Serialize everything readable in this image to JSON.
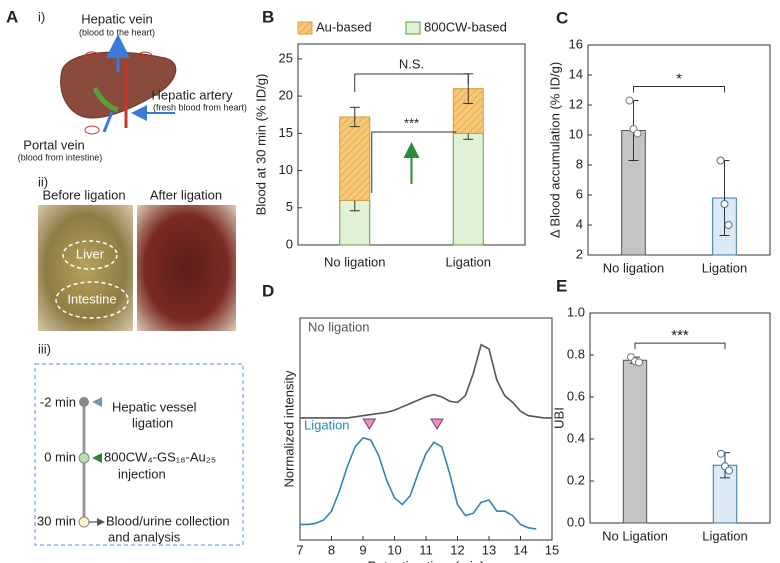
{
  "panel_a": {
    "letter": "A",
    "part_i": "i)",
    "hepatic_vein": "Hepatic vein",
    "hepatic_vein_note": "(blood to the heart)",
    "hepatic_artery": "Hepatic artery",
    "hepatic_artery_note": "(fresh blood from heart)",
    "portal_vein": "Portal vein",
    "portal_vein_note": "(blood from intestine)",
    "part_ii": "ii)",
    "before": "Before ligation",
    "after": "After ligation",
    "liver": "Liver",
    "intestine": "Intestine",
    "part_iii": "iii)",
    "steps": [
      {
        "time": "-2 min",
        "lines": [
          "Hepatic vessel",
          "ligation"
        ]
      },
      {
        "time": "0 min",
        "lines": [
          "800CW₄-GS₁₈-Au₂₅",
          "injection"
        ]
      },
      {
        "time": "30 min",
        "lines": [
          "Blood/urine collection",
          "and analysis"
        ]
      }
    ]
  },
  "chart_data": [
    {
      "type": "stacked_bar",
      "panel": "B",
      "y_label": "Blood at 30 min (% ID/g)",
      "categories": [
        "No ligation",
        "Ligation"
      ],
      "series": [
        {
          "name": "Au-based",
          "color": "#f6c978",
          "values": [
            11.2,
            6.0
          ],
          "errors": [
            1.3,
            2.0
          ]
        },
        {
          "name": "800CW-based",
          "color": "#e0f1d6",
          "values": [
            6.0,
            15.0
          ],
          "errors": [
            1.4,
            0.8
          ]
        }
      ],
      "ylim": [
        0,
        27
      ],
      "yticks": [
        0,
        5,
        10,
        15,
        20,
        25
      ],
      "annotations": [
        "N.S.",
        "***"
      ]
    },
    {
      "type": "bar",
      "panel": "C",
      "y_label": "Δ Blood accumulation (% ID/g)",
      "categories": [
        "No ligation",
        "Ligation"
      ],
      "values": [
        10.3,
        5.8
      ],
      "errors": [
        2.0,
        2.5
      ],
      "points": [
        [
          12.3,
          10.4,
          10.1
        ],
        [
          8.3,
          5.4,
          4.0
        ]
      ],
      "colors": [
        "#c4c4c4",
        "#dbeaf4"
      ],
      "ylim": [
        2,
        16
      ],
      "yticks": [
        2,
        4,
        6,
        8,
        10,
        12,
        14,
        16
      ],
      "annotations": [
        "*"
      ]
    },
    {
      "type": "line",
      "panel": "D",
      "x_label": "Retention time (min)",
      "y_label": "Normalized intensity",
      "x": [
        7,
        7.25,
        7.5,
        7.75,
        8,
        8.25,
        8.5,
        8.75,
        9,
        9.25,
        9.5,
        9.75,
        10,
        10.25,
        10.5,
        10.75,
        11,
        11.25,
        11.5,
        11.75,
        12,
        12.25,
        12.5,
        12.75,
        13,
        13.25,
        13.5,
        13.75,
        14,
        14.25,
        14.5,
        14.75,
        15
      ],
      "series": [
        {
          "name": "No ligation",
          "color": "#555555",
          "values": [
            0.55,
            0.55,
            0.55,
            0.55,
            0.55,
            0.55,
            0.55,
            0.555,
            0.56,
            0.565,
            0.57,
            0.575,
            0.585,
            0.6,
            0.615,
            0.63,
            0.645,
            0.655,
            0.645,
            0.625,
            0.62,
            0.65,
            0.75,
            0.88,
            0.86,
            0.72,
            0.65,
            0.62,
            0.58,
            0.56,
            0.555,
            0.55,
            0.55
          ]
        },
        {
          "name": "Ligation",
          "color": "#2e86b5",
          "values": [
            0.07,
            0.07,
            0.075,
            0.09,
            0.13,
            0.22,
            0.33,
            0.42,
            0.46,
            0.45,
            0.38,
            0.27,
            0.19,
            0.16,
            0.2,
            0.3,
            0.39,
            0.44,
            0.42,
            0.3,
            0.16,
            0.11,
            0.12,
            0.17,
            0.18,
            0.13,
            0.13,
            0.11,
            0.07,
            0.055,
            0.05,
            null,
            null
          ]
        }
      ],
      "markers_x": [
        9.2,
        11.35
      ],
      "marker_color": "#ec8fb2",
      "xlim": [
        7,
        15
      ],
      "xticks": [
        7,
        8,
        9,
        10,
        11,
        12,
        13,
        14,
        15
      ],
      "ylim": [
        0,
        1
      ]
    },
    {
      "type": "bar",
      "panel": "E",
      "y_label": "UBI",
      "categories": [
        "No Ligation",
        "Ligation"
      ],
      "values": [
        0.775,
        0.275
      ],
      "errors": [
        0.015,
        0.06
      ],
      "points": [
        [
          0.79,
          0.77,
          0.765
        ],
        [
          0.33,
          0.27,
          0.25
        ]
      ],
      "colors": [
        "#c4c4c4",
        "#dbeaf4"
      ],
      "ylim": [
        0,
        1
      ],
      "yticks": [
        {
          "value": 0,
          "label": "0.0"
        },
        {
          "value": 0.2,
          "label": "0.2"
        },
        {
          "value": 0.4,
          "label": "0.4"
        },
        {
          "value": 0.6,
          "label": "0.6"
        },
        {
          "value": 0.8,
          "label": "0.8"
        },
        {
          "value": 1,
          "label": "1.0"
        }
      ],
      "annotations": [
        "***"
      ]
    }
  ]
}
